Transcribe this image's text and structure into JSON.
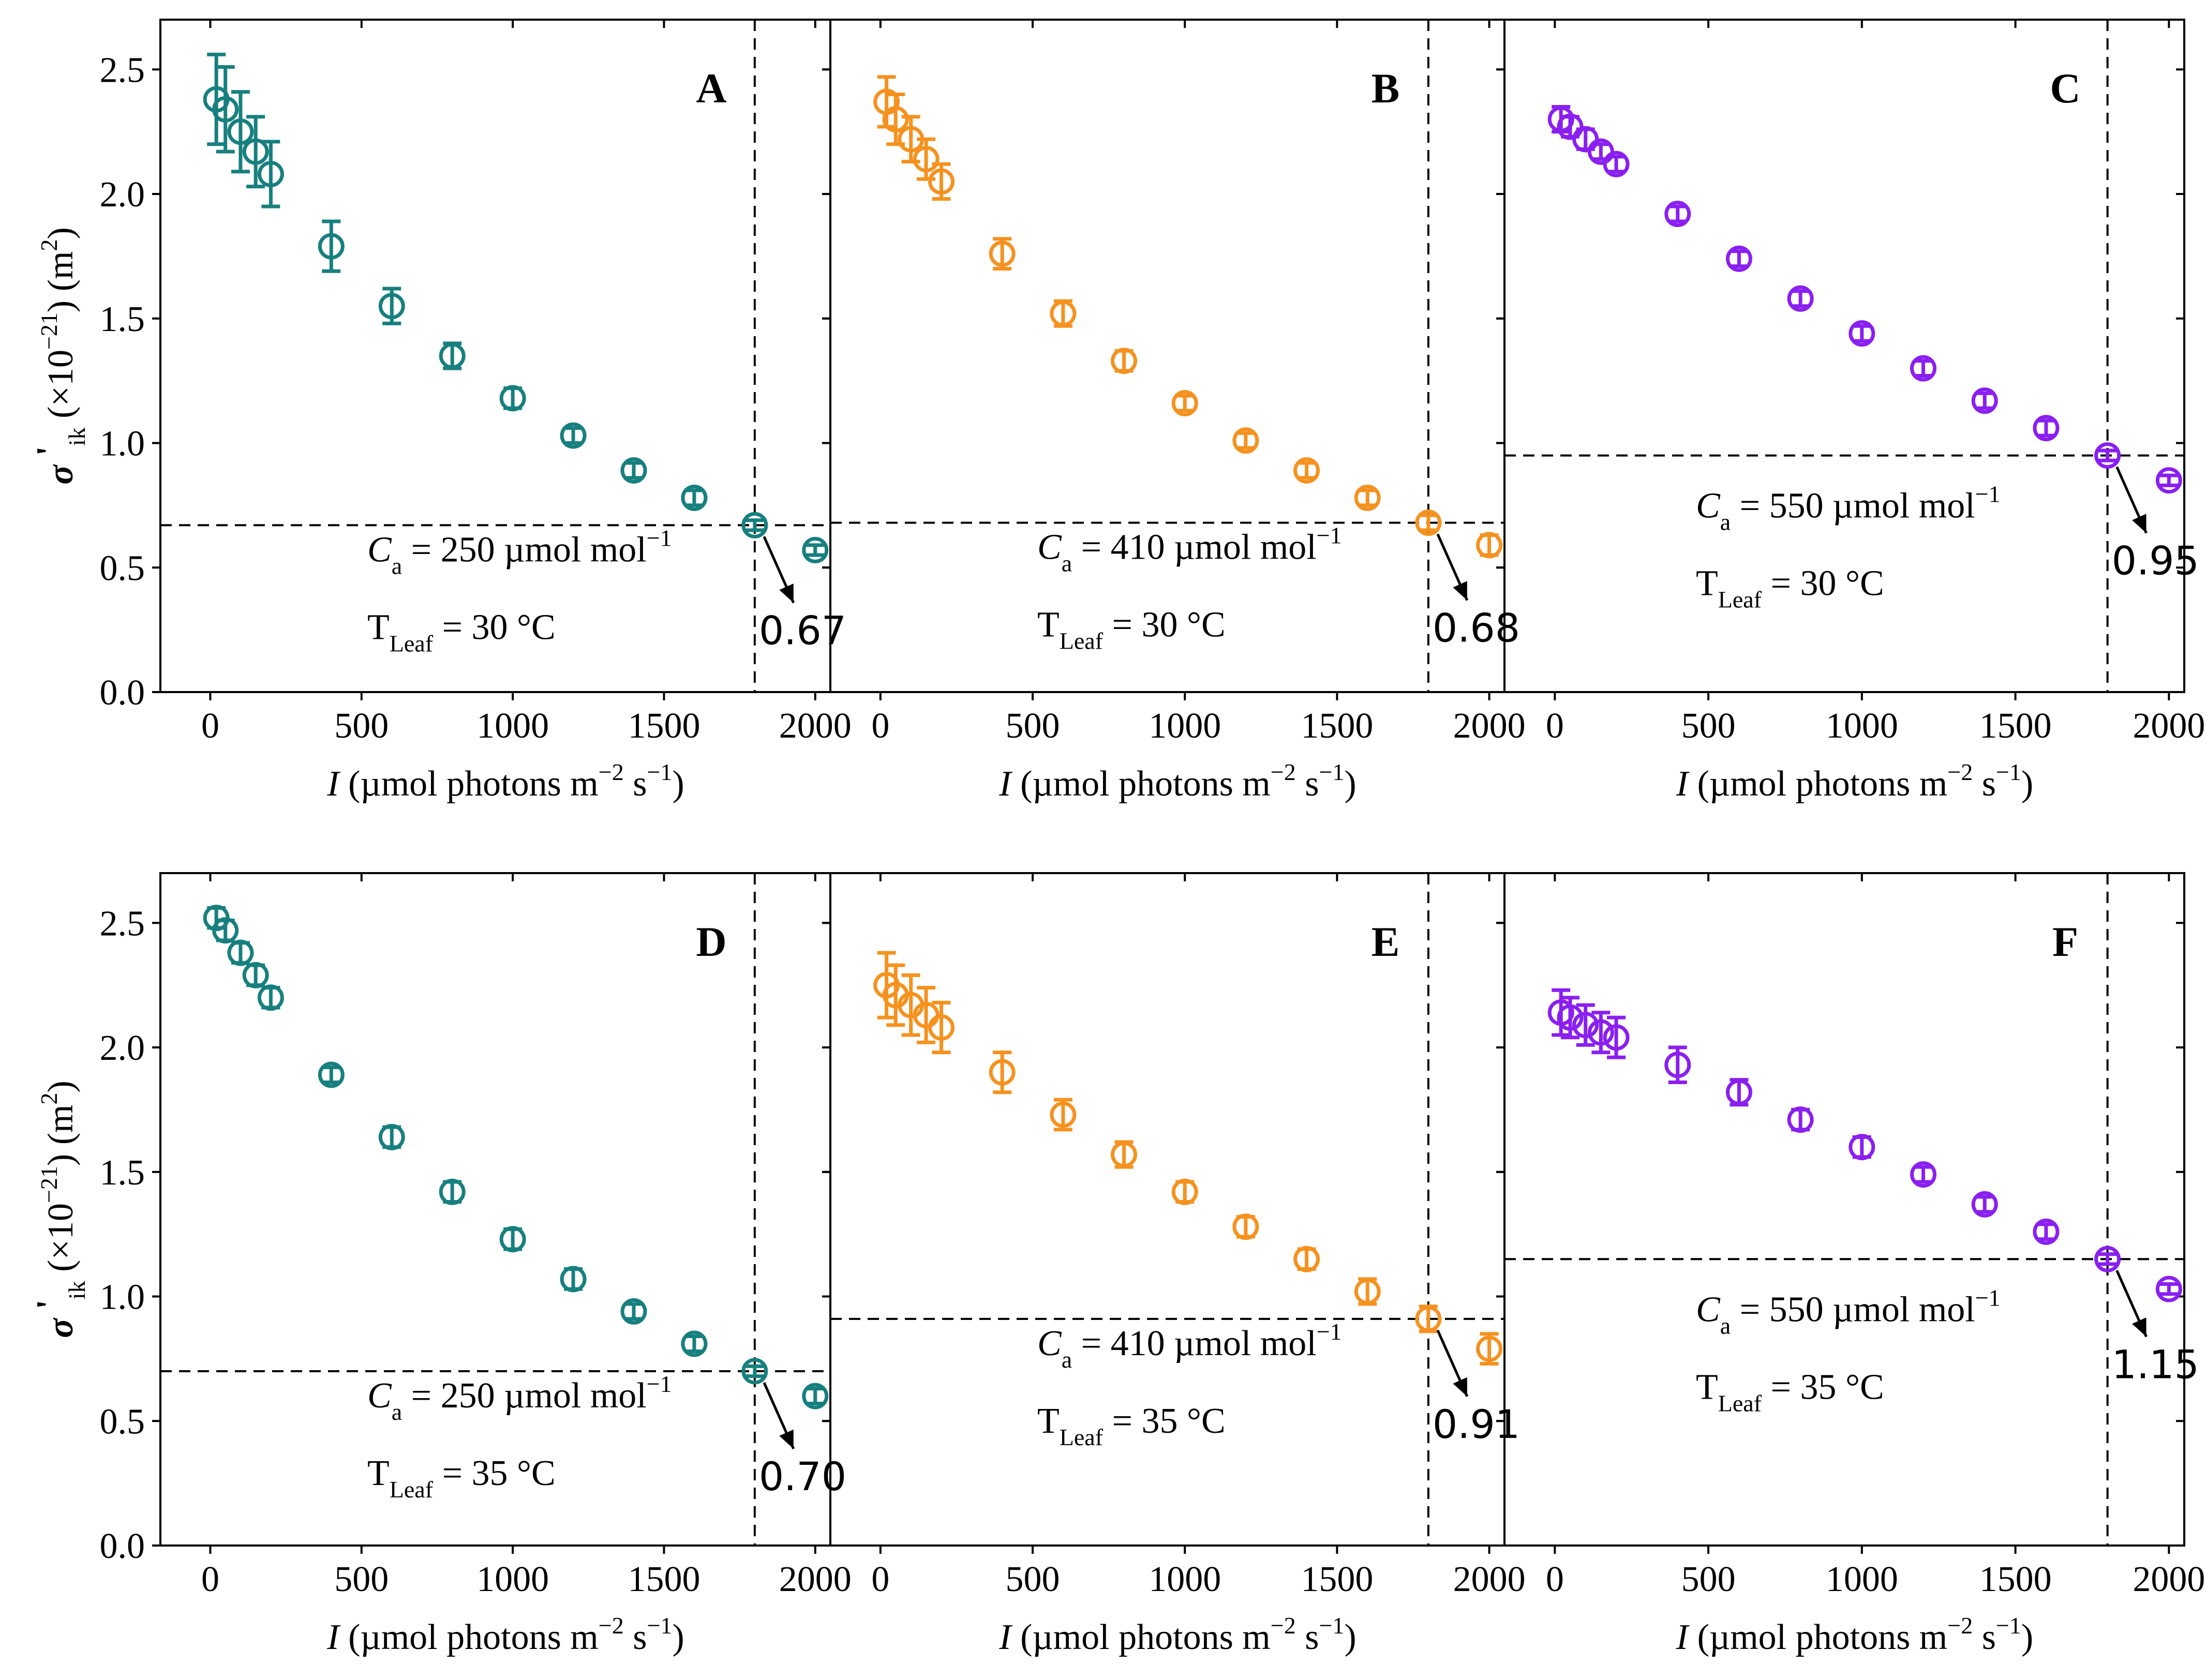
{
  "chart_data": {
    "type": "scatter",
    "figure": "six-panel scatter with error bars",
    "shared": {
      "xlabel": {
        "italic": "I",
        "text": " (µmol photons m",
        "sup1": "−2",
        "mid": " s",
        "sup2": "−1",
        "close": ")"
      },
      "ylabel": {
        "sigma": "σ",
        "prime": " '",
        "sub": "ik",
        "text": " (×10",
        "sup": "−21",
        "unit": ") (m",
        "sup2": "2",
        "close": ")"
      },
      "xlim": [
        -100,
        2050
      ],
      "ylim": [
        0,
        2.7
      ],
      "xticks": [
        0,
        500,
        1000,
        1500,
        2000
      ],
      "xtick_labels": [
        "0",
        "500",
        "1000",
        "1500",
        "2000"
      ],
      "yticks": [
        0,
        0.5,
        1.0,
        1.5,
        2.0,
        2.5
      ],
      "ytick_labels": [
        "0.0",
        "0.5",
        "1.0",
        "1.5",
        "2.0",
        "2.5"
      ],
      "vline_x": 1800,
      "x": [
        20,
        50,
        100,
        150,
        200,
        400,
        600,
        800,
        1000,
        1200,
        1400,
        1600,
        1800,
        2000
      ]
    },
    "panels": [
      {
        "label": "A",
        "color": "#17807e",
        "ca_sym": "C",
        "ca_sub": "a",
        "ca_text": " = 250 µmol mol",
        "ca_sup": "−1",
        "t_sym": "T",
        "t_sub": "Leaf",
        "t_text": " = 30 °C",
        "y": [
          2.38,
          2.34,
          2.25,
          2.17,
          2.08,
          1.79,
          1.55,
          1.35,
          1.18,
          1.03,
          0.89,
          0.78,
          0.67,
          0.57
        ],
        "err": [
          0.18,
          0.17,
          0.16,
          0.14,
          0.13,
          0.1,
          0.07,
          0.05,
          0.04,
          0.03,
          0.03,
          0.03,
          0.02,
          0.02
        ],
        "hline_y": 0.67,
        "annotation": "0.67"
      },
      {
        "label": "B",
        "color": "#f5921f",
        "ca_sym": "C",
        "ca_sub": "a",
        "ca_text": " = 410 µmol mol",
        "ca_sup": "−1",
        "t_sym": "T",
        "t_sub": "Leaf",
        "t_text": " = 30 °C",
        "y": [
          2.37,
          2.3,
          2.22,
          2.14,
          2.05,
          1.76,
          1.52,
          1.33,
          1.16,
          1.01,
          0.89,
          0.78,
          0.68,
          0.59
        ],
        "err": [
          0.1,
          0.1,
          0.09,
          0.08,
          0.07,
          0.06,
          0.05,
          0.04,
          0.03,
          0.03,
          0.03,
          0.03,
          0.03,
          0.04
        ],
        "hline_y": 0.68,
        "annotation": "0.68"
      },
      {
        "label": "C",
        "color": "#8a1ff0",
        "ca_sym": "C",
        "ca_sub": "a",
        "ca_text": " = 550 µmol mol",
        "ca_sup": "−1",
        "t_sym": "T",
        "t_sub": "Leaf",
        "t_text": " = 30 °C",
        "y": [
          2.3,
          2.27,
          2.22,
          2.17,
          2.12,
          1.92,
          1.74,
          1.58,
          1.44,
          1.3,
          1.17,
          1.06,
          0.95,
          0.85
        ],
        "err": [
          0.05,
          0.04,
          0.04,
          0.03,
          0.03,
          0.03,
          0.03,
          0.03,
          0.03,
          0.03,
          0.03,
          0.03,
          0.02,
          0.02
        ],
        "hline_y": 0.95,
        "annotation": "0.95"
      },
      {
        "label": "D",
        "color": "#17807e",
        "ca_sym": "C",
        "ca_sub": "a",
        "ca_text": " = 250 µmol mol",
        "ca_sup": "−1",
        "t_sym": "T",
        "t_sub": "Leaf",
        "t_text": " = 35 °C",
        "y": [
          2.52,
          2.47,
          2.38,
          2.29,
          2.2,
          1.89,
          1.64,
          1.42,
          1.23,
          1.07,
          0.94,
          0.81,
          0.7,
          0.6
        ],
        "err": [
          0.04,
          0.04,
          0.04,
          0.04,
          0.04,
          0.03,
          0.04,
          0.04,
          0.04,
          0.04,
          0.03,
          0.03,
          0.02,
          0.03
        ],
        "hline_y": 0.7,
        "annotation": "0.70"
      },
      {
        "label": "E",
        "color": "#f5921f",
        "ca_sym": "C",
        "ca_sub": "a",
        "ca_text": " = 410 µmol mol",
        "ca_sup": "−1",
        "t_sym": "T",
        "t_sub": "Leaf",
        "t_text": " = 35 °C",
        "y": [
          2.25,
          2.21,
          2.17,
          2.13,
          2.08,
          1.9,
          1.73,
          1.57,
          1.42,
          1.28,
          1.15,
          1.02,
          0.91,
          0.79
        ],
        "err": [
          0.13,
          0.12,
          0.12,
          0.11,
          0.1,
          0.08,
          0.06,
          0.05,
          0.04,
          0.04,
          0.04,
          0.05,
          0.05,
          0.06
        ],
        "hline_y": 0.91,
        "annotation": "0.91"
      },
      {
        "label": "F",
        "color": "#8a1ff0",
        "ca_sym": "C",
        "ca_sub": "a",
        "ca_text": " = 550 µmol mol",
        "ca_sup": "−1",
        "t_sym": "T",
        "t_sub": "Leaf",
        "t_text": " = 35 °C",
        "y": [
          2.14,
          2.12,
          2.09,
          2.06,
          2.04,
          1.93,
          1.82,
          1.71,
          1.6,
          1.49,
          1.37,
          1.26,
          1.15,
          1.03
        ],
        "err": [
          0.09,
          0.08,
          0.08,
          0.08,
          0.08,
          0.07,
          0.05,
          0.04,
          0.04,
          0.03,
          0.03,
          0.03,
          0.02,
          0.02
        ],
        "hline_y": 1.15,
        "annotation": "1.15"
      }
    ]
  }
}
